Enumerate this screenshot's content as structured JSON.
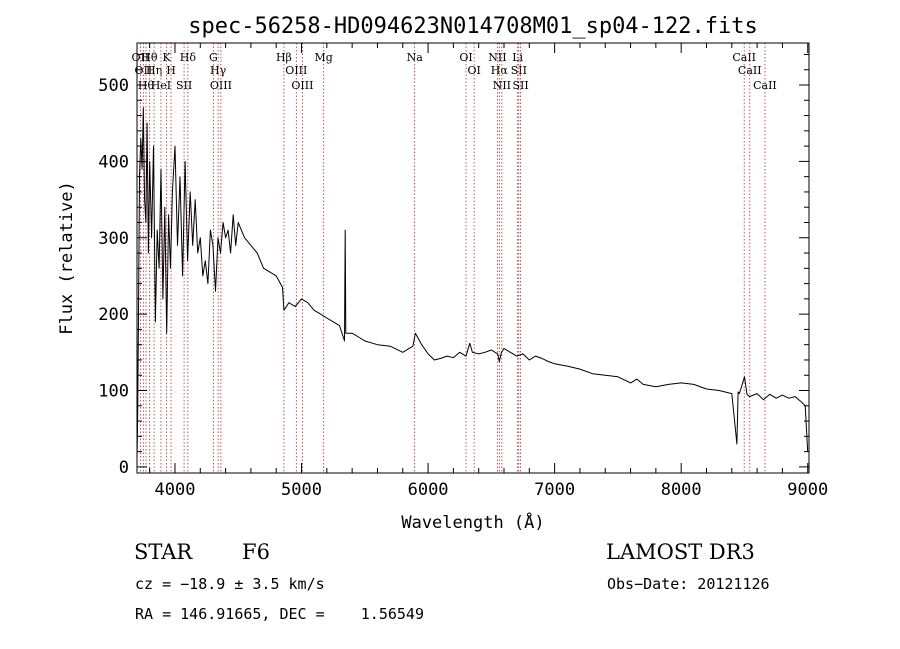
{
  "chart_data": {
    "type": "line",
    "title": "spec-56258-HD094623N014708M01_sp04-122.fits",
    "xlabel": "Wavelength (Å)",
    "ylabel": "Flux (relative)",
    "xlim": [
      3700,
      9010
    ],
    "ylim": [
      -8,
      555
    ],
    "xticks": [
      4000,
      5000,
      6000,
      7000,
      8000,
      9000
    ],
    "yticks": [
      0,
      100,
      200,
      300,
      400,
      500
    ],
    "grid": false,
    "line_color": "#000000",
    "marker_color": "#b03030",
    "series": [
      {
        "x": [
          3700,
          3705,
          3712,
          3720,
          3730,
          3740,
          3750,
          3760,
          3770,
          3780,
          3790,
          3800,
          3815,
          3830,
          3845,
          3860,
          3875,
          3890,
          3905,
          3920,
          3935,
          3950,
          3965,
          3980,
          4000,
          4020,
          4040,
          4060,
          4080,
          4100,
          4120,
          4140,
          4160,
          4180,
          4200,
          4220,
          4240,
          4260,
          4280,
          4300,
          4320,
          4340,
          4360,
          4380,
          4400,
          4420,
          4440,
          4460,
          4480,
          4500,
          4550,
          4600,
          4650,
          4700,
          4750,
          4800,
          4850,
          4861,
          4900,
          4950,
          5000,
          5050,
          5100,
          5150,
          5200,
          5250,
          5300,
          5340,
          5345,
          5350,
          5400,
          5450,
          5500,
          5600,
          5700,
          5800,
          5880,
          5900,
          5950,
          6000,
          6050,
          6100,
          6150,
          6200,
          6250,
          6300,
          6330,
          6350,
          6400,
          6450,
          6500,
          6530,
          6550,
          6563,
          6580,
          6600,
          6650,
          6700,
          6750,
          6800,
          6850,
          6900,
          6950,
          7000,
          7100,
          7200,
          7300,
          7400,
          7500,
          7600,
          7650,
          7700,
          7800,
          7900,
          8000,
          8100,
          8200,
          8300,
          8400,
          8440,
          8450,
          8460,
          8500,
          8520,
          8540,
          8600,
          8650,
          8700,
          8750,
          8800,
          8850,
          8900,
          8950,
          8980,
          9000
        ],
        "y": [
          10,
          60,
          200,
          380,
          430,
          390,
          470,
          350,
          320,
          450,
          280,
          400,
          300,
          420,
          190,
          310,
          260,
          390,
          220,
          340,
          175,
          330,
          260,
          360,
          420,
          290,
          380,
          250,
          400,
          270,
          360,
          290,
          350,
          280,
          300,
          250,
          270,
          240,
          310,
          290,
          230,
          300,
          280,
          320,
          300,
          310,
          280,
          330,
          290,
          320,
          300,
          290,
          280,
          260,
          255,
          250,
          235,
          205,
          215,
          210,
          220,
          215,
          205,
          200,
          195,
          190,
          185,
          165,
          310,
          175,
          175,
          170,
          165,
          160,
          158,
          150,
          158,
          175,
          160,
          148,
          140,
          142,
          145,
          143,
          150,
          145,
          162,
          150,
          148,
          150,
          153,
          150,
          148,
          138,
          150,
          155,
          150,
          145,
          148,
          140,
          145,
          142,
          138,
          135,
          132,
          128,
          122,
          120,
          118,
          110,
          115,
          108,
          105,
          108,
          110,
          108,
          102,
          100,
          96,
          30,
          98,
          96,
          118,
          95,
          92,
          96,
          88,
          95,
          90,
          94,
          90,
          92,
          85,
          80,
          20
        ]
      }
    ],
    "lines": [
      {
        "x": 3727,
        "label": "OII"
      },
      {
        "x": 3750,
        "label": "OII"
      },
      {
        "x": 3771,
        "label": "Hθ"
      },
      {
        "x": 3798,
        "label": "Hθ"
      },
      {
        "x": 3835,
        "label": "Hη"
      },
      {
        "x": 3889,
        "label": "HeI"
      },
      {
        "x": 3934,
        "label": "K"
      },
      {
        "x": 3969,
        "label": "H"
      },
      {
        "x": 4072,
        "label": "SII"
      },
      {
        "x": 4102,
        "label": "Hδ"
      },
      {
        "x": 4304,
        "label": "G"
      },
      {
        "x": 4341,
        "label": "Hγ"
      },
      {
        "x": 4363,
        "label": "OIII"
      },
      {
        "x": 4861,
        "label": "Hβ"
      },
      {
        "x": 4959,
        "label": "OIII"
      },
      {
        "x": 5007,
        "label": "OIII"
      },
      {
        "x": 5175,
        "label": "Mg"
      },
      {
        "x": 5894,
        "label": "Na"
      },
      {
        "x": 6300,
        "label": "OI"
      },
      {
        "x": 6364,
        "label": "OI"
      },
      {
        "x": 6548,
        "label": "NII"
      },
      {
        "x": 6563,
        "label": "Hα"
      },
      {
        "x": 6583,
        "label": "NII"
      },
      {
        "x": 6708,
        "label": "Li"
      },
      {
        "x": 6717,
        "label": "SII"
      },
      {
        "x": 6731,
        "label": "SII"
      },
      {
        "x": 8498,
        "label": "CaII"
      },
      {
        "x": 8542,
        "label": "CaII"
      },
      {
        "x": 8662,
        "label": "CaII"
      }
    ]
  },
  "info": {
    "object_class": "STAR",
    "subclass": "F6",
    "survey": "LAMOST DR3",
    "redshift": "cz = −18.9 ± 3.5 km/s",
    "obs_date": "Obs−Date: 20121126",
    "coords": "RA = 146.91665, DEC =    1.56549"
  }
}
